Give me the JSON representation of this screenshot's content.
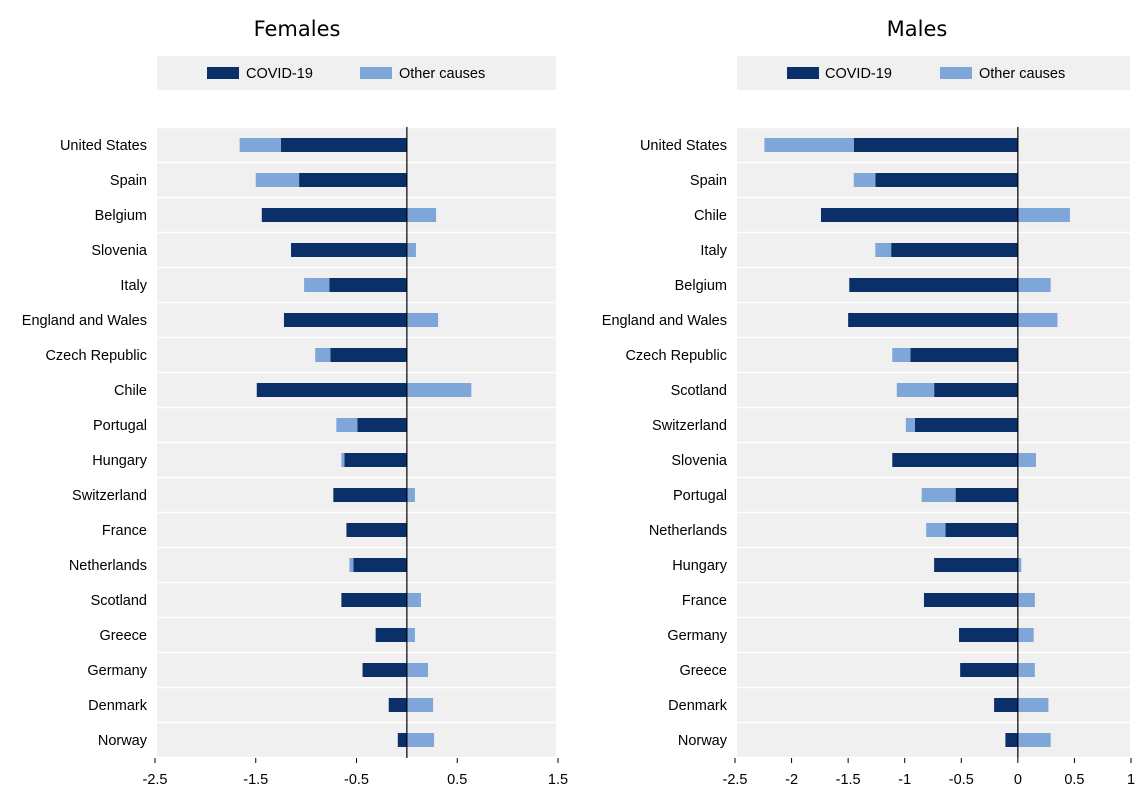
{
  "chart_data": [
    {
      "type": "bar",
      "orientation": "horizontal",
      "stacked": true,
      "title": "Females",
      "legend": {
        "placement": "top",
        "entries": [
          "COVID-19",
          "Other causes"
        ]
      },
      "categories": [
        "United States",
        "Spain",
        "Belgium",
        "Slovenia",
        "Italy",
        "England and Wales",
        "Czech Republic",
        "Chile",
        "Portugal",
        "Hungary",
        "Switzerland",
        "France",
        "Netherlands",
        "Scotland",
        "Greece",
        "Germany",
        "Denmark",
        "Norway"
      ],
      "series": [
        {
          "name": "COVID-19",
          "color": "#0b3069",
          "values": [
            -1.25,
            -1.07,
            -1.44,
            -1.15,
            -0.77,
            -1.22,
            -0.76,
            -1.49,
            -0.49,
            -0.62,
            -0.73,
            -0.6,
            -0.53,
            -0.65,
            -0.31,
            -0.44,
            -0.18,
            -0.09
          ]
        },
        {
          "name": "Other causes",
          "color": "#7ea6d8",
          "values": [
            -0.41,
            -0.43,
            0.29,
            0.09,
            -0.25,
            0.31,
            -0.15,
            0.64,
            -0.21,
            -0.03,
            0.08,
            0.0,
            -0.04,
            0.14,
            0.08,
            0.21,
            0.26,
            0.27
          ]
        }
      ],
      "xlim": [
        -2.5,
        1.5
      ],
      "xticks": [
        "-2.5",
        "-1.5",
        "-0.5",
        "0.5",
        "1.5"
      ],
      "grid": true
    },
    {
      "type": "bar",
      "orientation": "horizontal",
      "stacked": true,
      "title": "Males",
      "legend": {
        "placement": "top",
        "entries": [
          "COVID-19",
          "Other causes"
        ]
      },
      "categories": [
        "United States",
        "Spain",
        "Chile",
        "Italy",
        "Belgium",
        "England and Wales",
        "Czech Republic",
        "Scotland",
        "Switzerland",
        "Slovenia",
        "Portugal",
        "Netherlands",
        "Hungary",
        "France",
        "Germany",
        "Greece",
        "Denmark",
        "Norway"
      ],
      "series": [
        {
          "name": "COVID-19",
          "color": "#0b3069",
          "values": [
            -1.45,
            -1.26,
            -1.74,
            -1.12,
            -1.49,
            -1.5,
            -0.95,
            -0.74,
            -0.91,
            -1.11,
            -0.55,
            -0.64,
            -0.74,
            -0.83,
            -0.52,
            -0.51,
            -0.21,
            -0.11
          ]
        },
        {
          "name": "Other causes",
          "color": "#7ea6d8",
          "values": [
            -0.79,
            -0.19,
            0.46,
            -0.14,
            0.29,
            0.35,
            -0.16,
            -0.33,
            -0.08,
            0.16,
            -0.3,
            -0.17,
            0.03,
            0.15,
            0.14,
            0.15,
            0.27,
            0.29
          ]
        }
      ],
      "xlim": [
        -2.5,
        1
      ],
      "xticks": [
        "-2.5",
        "-2",
        "-1.5",
        "-1",
        "-0.5",
        "0",
        "0.5",
        "1"
      ],
      "grid": true
    }
  ]
}
